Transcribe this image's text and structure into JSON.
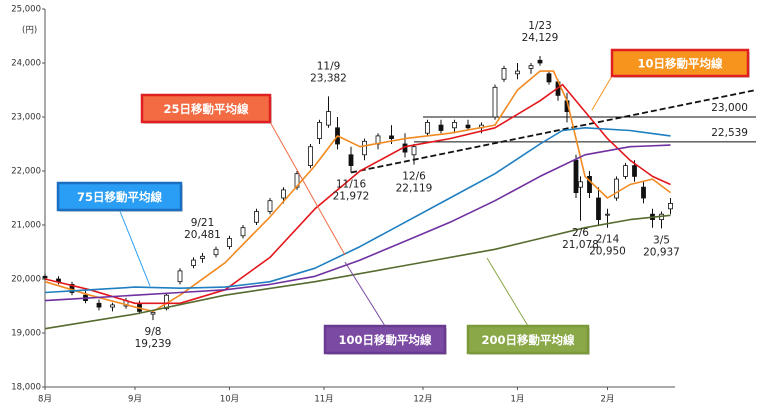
{
  "chart_data": {
    "type": "candlestick",
    "unit_label": "(円)",
    "xlim": [
      0,
      140
    ],
    "ylim": [
      18000,
      25000
    ],
    "grid": false,
    "yticks": [
      {
        "value": 18000,
        "label": "18,000"
      },
      {
        "value": 19000,
        "label": "19,000"
      },
      {
        "value": 20000,
        "label": "20,000"
      },
      {
        "value": 21000,
        "label": "21,000"
      },
      {
        "value": 22000,
        "label": "22,000"
      },
      {
        "value": 23000,
        "label": "23,000"
      },
      {
        "value": 24000,
        "label": "24,000"
      },
      {
        "value": 25000,
        "label": "25,000"
      }
    ],
    "xticks": [
      {
        "value": 0,
        "label": "8月"
      },
      {
        "value": 20,
        "label": "9月"
      },
      {
        "value": 41,
        "label": "10月"
      },
      {
        "value": 62,
        "label": "11月"
      },
      {
        "value": 84,
        "label": "12月"
      },
      {
        "value": 105,
        "label": "1月"
      },
      {
        "value": 125,
        "label": "2月"
      }
    ],
    "candles": {
      "x": [
        0,
        3,
        6,
        9,
        12,
        15,
        18,
        21,
        24,
        27,
        30,
        33,
        35,
        38,
        41,
        44,
        47,
        50,
        53,
        56,
        59,
        61,
        63,
        65,
        68,
        71,
        74,
        77,
        80,
        82,
        85,
        88,
        91,
        94,
        97,
        100,
        102,
        105,
        108,
        110,
        112,
        114,
        116,
        118,
        119,
        121,
        123,
        125,
        127,
        129,
        131,
        133,
        135,
        137,
        139
      ],
      "open": [
        20050,
        20000,
        19900,
        19700,
        19550,
        19480,
        19500,
        19550,
        19350,
        19450,
        19950,
        20250,
        20380,
        20450,
        20600,
        20800,
        21050,
        21250,
        21500,
        21700,
        22100,
        22600,
        22850,
        22800,
        22300,
        22300,
        22500,
        22650,
        22500,
        22300,
        22700,
        22850,
        22800,
        22850,
        22800,
        23000,
        23700,
        23800,
        23900,
        24050,
        23800,
        23650,
        23300,
        22200,
        21700,
        21900,
        21500,
        21200,
        21500,
        21900,
        22100,
        21700,
        21200,
        21100,
        21300
      ],
      "high": [
        20100,
        20050,
        19950,
        19780,
        19620,
        19560,
        19650,
        19600,
        19420,
        19750,
        20200,
        20400,
        20481,
        20600,
        20800,
        21000,
        21300,
        21500,
        21700,
        22000,
        22500,
        22950,
        23382,
        23000,
        22450,
        22600,
        22700,
        22850,
        22700,
        22500,
        22950,
        22950,
        22950,
        22950,
        22900,
        23600,
        23950,
        24000,
        24000,
        24129,
        23850,
        23700,
        23450,
        22300,
        21900,
        22000,
        21700,
        21300,
        21900,
        22150,
        22200,
        21800,
        21300,
        21250,
        21500
      ],
      "low": [
        19980,
        19900,
        19700,
        19550,
        19420,
        19400,
        19450,
        19350,
        19239,
        19420,
        19900,
        20200,
        20300,
        20400,
        20550,
        20750,
        21000,
        21200,
        21400,
        21650,
        22050,
        22500,
        22800,
        22400,
        21972,
        22200,
        22400,
        22500,
        22250,
        22119,
        22650,
        22700,
        22700,
        22750,
        22700,
        22950,
        23650,
        23700,
        23800,
        23950,
        23600,
        23300,
        22900,
        21500,
        21078,
        21500,
        21000,
        20950,
        21450,
        21850,
        21800,
        21400,
        20950,
        20937,
        21200
      ],
      "close": [
        20020,
        19950,
        19750,
        19600,
        19480,
        19520,
        19600,
        19400,
        19380,
        19700,
        20150,
        20350,
        20420,
        20550,
        20750,
        20950,
        21250,
        21450,
        21650,
        21950,
        22450,
        22900,
        23100,
        22500,
        22100,
        22550,
        22650,
        22600,
        22350,
        22450,
        22900,
        22750,
        22900,
        22800,
        22850,
        23550,
        23900,
        23850,
        23950,
        24000,
        23650,
        23400,
        23100,
        21600,
        21800,
        21600,
        21100,
        21200,
        21850,
        22100,
        21900,
        21500,
        21100,
        21200,
        21400
      ]
    },
    "series": [
      {
        "name": "10日移動平均線",
        "color": "#f28a22",
        "box_color": "#f7941d",
        "box_border": "#e02020",
        "x": [
          0,
          10,
          20,
          24,
          30,
          40,
          50,
          60,
          65,
          70,
          80,
          90,
          100,
          105,
          110,
          113,
          116,
          120,
          125,
          130,
          135,
          139
        ],
        "values": [
          19950,
          19700,
          19480,
          19400,
          19700,
          20300,
          21150,
          22100,
          22650,
          22450,
          22600,
          22700,
          22850,
          23500,
          23850,
          23850,
          23300,
          21900,
          21500,
          21750,
          21850,
          21600
        ]
      },
      {
        "name": "25日移動平均線",
        "color": "#e3171b",
        "box_color": "#f26b43",
        "box_border": "#e02020",
        "x": [
          0,
          10,
          20,
          30,
          40,
          50,
          60,
          70,
          80,
          90,
          100,
          110,
          115,
          120,
          125,
          130,
          135,
          139
        ],
        "values": [
          20000,
          19800,
          19550,
          19550,
          19800,
          20400,
          21300,
          22000,
          22450,
          22600,
          22800,
          23300,
          23600,
          23100,
          22600,
          22200,
          21900,
          21750
        ]
      },
      {
        "name": "75日移動平均線",
        "color": "#1f7fc1",
        "box_color": "#2a9df4",
        "box_border": "#1a6fc0",
        "x": [
          0,
          10,
          20,
          30,
          40,
          50,
          60,
          70,
          80,
          90,
          100,
          110,
          115,
          120,
          130,
          139
        ],
        "values": [
          19750,
          19800,
          19850,
          19830,
          19850,
          19950,
          20200,
          20600,
          21050,
          21500,
          21950,
          22500,
          22750,
          22800,
          22750,
          22650
        ]
      },
      {
        "name": "100日移動平均線",
        "color": "#7030a0",
        "box_color": "#7b4aa3",
        "box_border": "#6a3a90",
        "x": [
          0,
          10,
          20,
          30,
          40,
          50,
          60,
          70,
          80,
          90,
          100,
          110,
          120,
          130,
          139
        ],
        "values": [
          19600,
          19650,
          19700,
          19750,
          19800,
          19900,
          20050,
          20350,
          20700,
          21050,
          21450,
          21900,
          22300,
          22450,
          22480
        ]
      },
      {
        "name": "200日移動平均線",
        "color": "#556b2f",
        "box_color": "#8aa847",
        "box_border": "#7a9a3a",
        "x": [
          0,
          20,
          40,
          60,
          80,
          100,
          110,
          120,
          130,
          139
        ],
        "values": [
          19080,
          19350,
          19700,
          19950,
          20250,
          20550,
          20750,
          20950,
          21100,
          21180
        ]
      }
    ],
    "reference_lines": [
      {
        "x": [
          84,
          158
        ],
        "values": [
          23000,
          23000
        ],
        "label": "23,000",
        "style": "solid"
      },
      {
        "x": [
          82,
          158
        ],
        "values": [
          22539,
          22539
        ],
        "label": "22,539",
        "style": "solid"
      },
      {
        "x": [
          68,
          158
        ],
        "values": [
          21972,
          23500
        ],
        "style": "dashed"
      }
    ],
    "annotations": [
      {
        "x": 63,
        "date": "11/9",
        "value": 23382,
        "label": "23,382",
        "side": "above"
      },
      {
        "x": 110,
        "date": "1/23",
        "value": 24129,
        "label": "24,129",
        "side": "above"
      },
      {
        "x": 35,
        "date": "9/21",
        "value": 20481,
        "label": "20,481",
        "side": "above"
      },
      {
        "x": 68,
        "date": "11/16",
        "value": 21972,
        "label": "21,972",
        "side": "below"
      },
      {
        "x": 82,
        "date": "12/6",
        "value": 22119,
        "label": "22,119",
        "side": "below"
      },
      {
        "x": 24,
        "date": "9/8",
        "value": 19239,
        "label": "19,239",
        "side": "below"
      },
      {
        "x": 119,
        "date": "2/6",
        "value": 21078,
        "label": "21,078",
        "side": "below"
      },
      {
        "x": 125,
        "date": "2/14",
        "value": 20950,
        "label": "20,950",
        "side": "below"
      },
      {
        "x": 137,
        "date": "3/5",
        "value": 20937,
        "label": "20,937",
        "side": "below"
      }
    ]
  }
}
